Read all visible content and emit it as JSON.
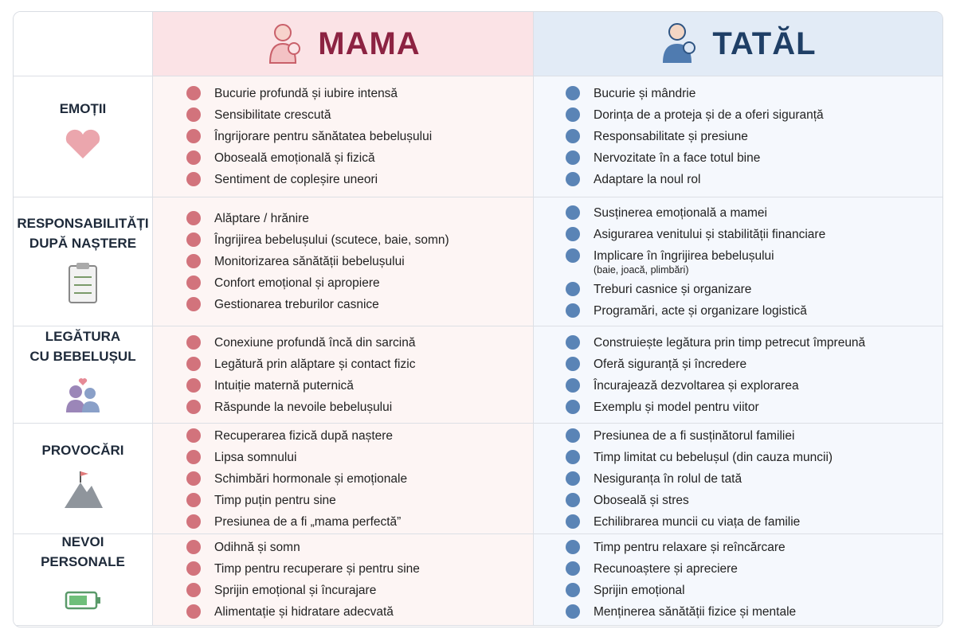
{
  "header": {
    "mama": "MAMA",
    "tata": "TATĂL"
  },
  "rows": [
    {
      "label": [
        "EMOȚII"
      ],
      "mama": [
        "Bucurie profundă și iubire intensă",
        "Sensibilitate crescută",
        "Îngrijorare pentru sănătatea bebelușului",
        "Oboseală emoțională și fizică",
        "Sentiment de copleșire uneori"
      ],
      "tata": [
        "Bucurie și mândrie",
        "Dorința de a proteja și de a oferi siguranță",
        "Responsabilitate și presiune",
        "Nervozitate în a face totul bine",
        "Adaptare la noul rol"
      ]
    },
    {
      "label": [
        "RESPONSABILITĂȚI",
        "DUPĂ NAȘTERE"
      ],
      "mama": [
        "Alăptare / hrănire",
        "Îngrijirea bebelușului (scutece, baie, somn)",
        "Monitorizarea sănătății bebelușului",
        "Confort emoțional și apropiere",
        "Gestionarea treburilor casnice"
      ],
      "tata": [
        "Susținerea emoțională a mamei",
        "Asigurarea venitului și stabilității financiare",
        [
          "Implicare în îngrijirea bebelușului",
          "(baie, joacă, plimbări)"
        ],
        "Treburi casnice și organizare",
        "Programări, acte și organizare logistică"
      ]
    },
    {
      "label": [
        "LEGĂTURA",
        "CU BEBELUȘUL"
      ],
      "mama": [
        "Conexiune profundă încă din sarcină",
        "Legătură prin alăptare și contact fizic",
        "Intuiție maternă puternică",
        "Răspunde la nevoile bebelușului"
      ],
      "tata": [
        "Construiește legătura prin timp petrecut împreună",
        "Oferă siguranță și încredere",
        "Încurajează dezvoltarea și explorarea",
        "Exemplu și model pentru viitor"
      ]
    },
    {
      "label": [
        "PROVOCĂRI"
      ],
      "mama": [
        "Recuperarea fizică după naștere",
        "Lipsa somnului",
        "Schimbări hormonale și emoționale",
        "Timp puțin pentru sine",
        "Presiunea de a fi „mama perfectă”"
      ],
      "tata": [
        "Presiunea de a fi susținătorul familiei",
        "Timp limitat cu bebelușul (din cauza muncii)",
        "Nesiguranța în rolul de tată",
        "Oboseală și stres",
        "Echilibrarea muncii cu viața de familie"
      ]
    },
    {
      "label": [
        "NEVOI",
        "PERSONALE"
      ],
      "mama": [
        "Odihnă și somn",
        "Timp pentru recuperare și pentru sine",
        "Sprijin emoțional și încurajare",
        "Alimentație și hidratare adecvată"
      ],
      "tata": [
        "Timp pentru relaxare și reîncărcare",
        "Recunoaștere și apreciere",
        "Sprijin emoțional",
        "Menținerea sănătății fizice și mentale"
      ]
    }
  ]
}
